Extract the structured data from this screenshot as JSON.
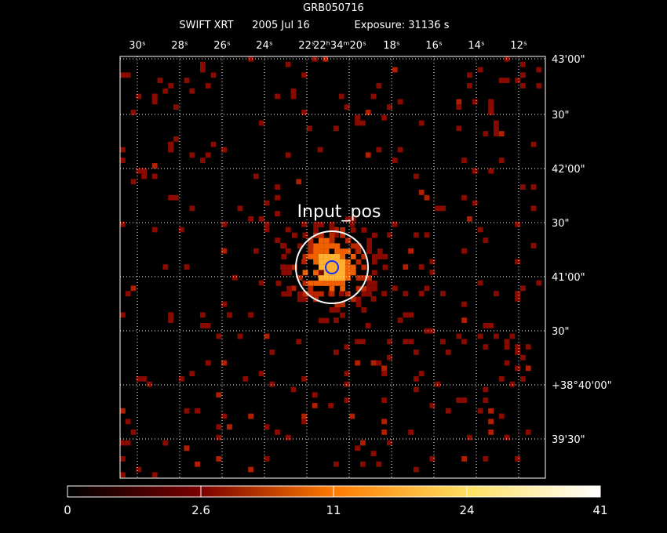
{
  "header": {
    "title": "GRB050716",
    "subtitle_parts": [
      "SWIFT XRT",
      "2005 Jul 16",
      "Exposure: 31136 s"
    ]
  },
  "ra_labels": [
    "30ˢ",
    "28ˢ",
    "26ˢ",
    "24ˢ",
    "22ˢ",
    "22ʰ34ᵐ20ˢ",
    "18ˢ",
    "16ˢ",
    "14ˢ",
    "12ˢ"
  ],
  "dec_labels": [
    "43'00\"",
    "30\"",
    "42'00\"",
    "30\"",
    "41'00\"",
    "30\"",
    "+38°40'00\"",
    "39'30\""
  ],
  "source_label": "Input_pos",
  "colorbar": {
    "labels": [
      "0",
      "2.6",
      "11",
      "24",
      "41"
    ]
  }
}
